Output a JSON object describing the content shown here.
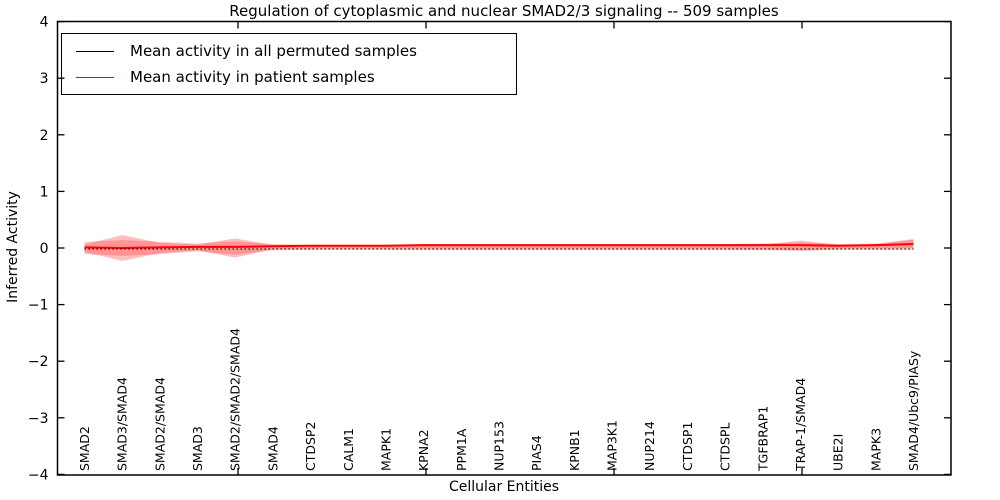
{
  "chart_data": {
    "type": "line",
    "title": "Regulation of cytoplasmic and nuclear SMAD2/3 signaling -- 509 samples",
    "xlabel": "Cellular Entities",
    "ylabel": "Inferred Activity",
    "ylim": [
      -4,
      4
    ],
    "yticks": [
      4,
      3,
      2,
      1,
      0,
      -1,
      -2,
      -3,
      -4
    ],
    "ytick_labels": [
      "4",
      "3",
      "2",
      "1",
      "0",
      "−1",
      "−2",
      "−3",
      "−4"
    ],
    "grid": false,
    "legend": {
      "position": "upper left",
      "entries": [
        {
          "label": "Mean activity in all permuted samples",
          "color": "#000000"
        },
        {
          "label": "Mean activity in patient samples",
          "color": "#ff0000"
        }
      ]
    },
    "categories": [
      "SMAD2",
      "SMAD3/SMAD4",
      "SMAD2/SMAD4",
      "SMAD3",
      "SMAD2/SMAD2/SMAD4",
      "SMAD4",
      "CTDSP2",
      "CALM1",
      "MAPK1",
      "KPNA2",
      "PPM1A",
      "NUP153",
      "PIAS4",
      "KPNB1",
      "MAP3K1",
      "NUP214",
      "CTDSP1",
      "CTDSPL",
      "TGFBRAP1",
      "TRAP-1/SMAD4",
      "UBE2I",
      "MAPK3",
      "SMAD4/Ubc9/PIASy"
    ],
    "series": [
      {
        "name": "Mean activity in all permuted samples",
        "color": "#000000",
        "style": "dotted",
        "values": [
          0,
          0,
          0,
          0,
          0,
          0,
          0,
          0,
          0,
          0,
          0,
          0,
          0,
          0,
          0,
          0,
          0,
          0,
          0,
          0,
          0,
          0,
          0
        ]
      },
      {
        "name": "Mean activity in patient samples",
        "color": "#ff0000",
        "style": "solid",
        "values": [
          0.01,
          0.0,
          0.01,
          0.02,
          0.02,
          0.03,
          0.04,
          0.04,
          0.04,
          0.05,
          0.05,
          0.05,
          0.05,
          0.05,
          0.05,
          0.05,
          0.05,
          0.05,
          0.05,
          0.05,
          0.04,
          0.05,
          0.07
        ]
      }
    ],
    "bands": [
      {
        "name": "patient-activity-spread-outer",
        "color": "#ff0000",
        "alpha": 0.22,
        "upper": [
          0.11,
          0.14,
          0.11,
          0.08,
          0.12,
          0.07,
          0.06,
          0.06,
          0.06,
          0.07,
          0.07,
          0.07,
          0.07,
          0.07,
          0.07,
          0.07,
          0.07,
          0.07,
          0.08,
          0.1,
          0.07,
          0.08,
          0.16
        ],
        "lower": [
          -0.11,
          -0.14,
          -0.11,
          -0.06,
          -0.12,
          -0.04,
          -0.03,
          -0.03,
          -0.03,
          -0.04,
          -0.04,
          -0.04,
          -0.04,
          -0.04,
          -0.04,
          -0.04,
          -0.04,
          -0.04,
          -0.04,
          -0.05,
          -0.03,
          -0.03,
          -0.03
        ]
      },
      {
        "name": "patient-activity-spread-peaks",
        "color": "#ff0000",
        "alpha": 0.25,
        "upper": [
          0.06,
          0.23,
          0.09,
          0.06,
          0.17,
          0.05,
          0.05,
          0.05,
          0.05,
          0.06,
          0.06,
          0.06,
          0.06,
          0.06,
          0.06,
          0.06,
          0.06,
          0.06,
          0.06,
          0.13,
          0.06,
          0.06,
          0.15
        ],
        "lower": [
          -0.07,
          -0.23,
          -0.09,
          -0.04,
          -0.17,
          -0.02,
          -0.01,
          -0.01,
          -0.01,
          -0.01,
          -0.01,
          -0.01,
          -0.01,
          -0.01,
          -0.01,
          -0.01,
          -0.01,
          -0.01,
          -0.02,
          -0.04,
          -0.01,
          -0.01,
          0.0
        ]
      }
    ]
  }
}
